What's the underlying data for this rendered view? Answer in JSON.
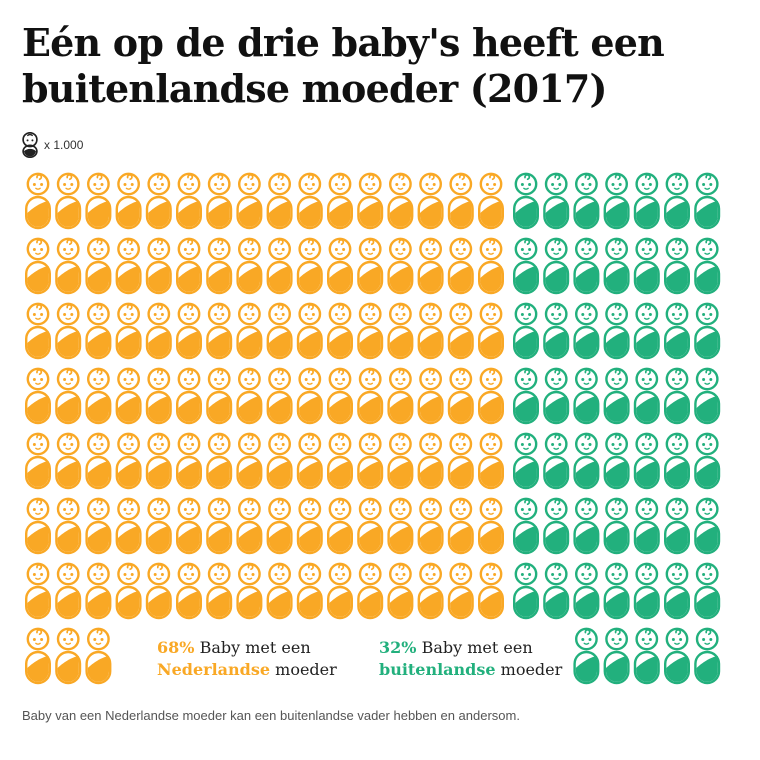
{
  "title": "Eén op de drie baby's heeft een buitenlandse moeder (2017)",
  "unit": {
    "icon": "baby-icon",
    "label": "x 1.000"
  },
  "chart_data": {
    "type": "pictogram",
    "unit_value": 1000,
    "series": [
      {
        "key": "nl",
        "count": 115,
        "percent": "68%",
        "label_plain_1": "Baby met een",
        "label_bold_2": "Nederlandse",
        "label_plain_2": "moeder",
        "color": "#F9A825"
      },
      {
        "key": "fr",
        "count": 54,
        "percent": "32%",
        "label_plain_1": "Baby met een",
        "label_bold_2": "buitenlandse",
        "label_plain_2": "moeder",
        "color": "#22B07D"
      }
    ]
  },
  "footnote": "Baby van een Nederlandse moeder kan een buitenlandse vader hebben en andersom."
}
